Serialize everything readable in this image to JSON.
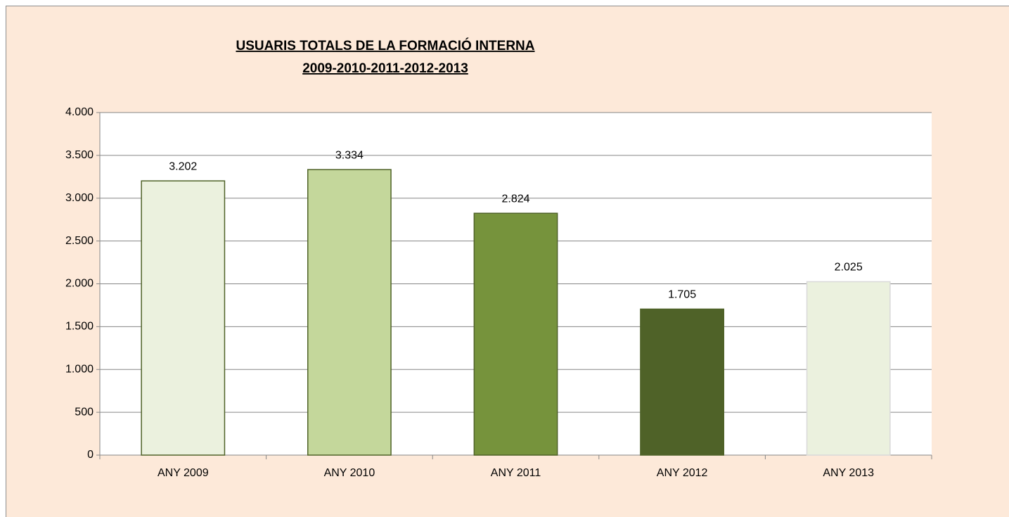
{
  "chart_data": {
    "type": "bar",
    "title": "USUARIS TOTALS DE LA FORMACIÓ INTERNA",
    "subtitle": "2009-2010-2011-2012-2013",
    "categories": [
      "ANY 2009",
      "ANY 2010",
      "ANY 2011",
      "ANY 2012",
      "ANY 2013"
    ],
    "values": [
      3202,
      3334,
      2824,
      1705,
      2025
    ],
    "value_labels": [
      "3.202",
      "3.334",
      "2.824",
      "1.705",
      "2.025"
    ],
    "colors": [
      "#ebf1de",
      "#c4d79b",
      "#76933c",
      "#4f6228",
      "#ebf1de"
    ],
    "ylim": [
      0,
      4000
    ],
    "yticks": [
      0,
      500,
      {
        "value": 1000,
        "label": "1.000"
      },
      {
        "value": 1500,
        "label": "1.500"
      },
      {
        "value": 2000,
        "label": "2.000"
      },
      {
        "value": 2500,
        "label": "2.500"
      },
      {
        "value": 3000,
        "label": "3.000"
      },
      {
        "value": 3500,
        "label": "3.500"
      },
      {
        "value": 4000,
        "label": "4.000"
      }
    ],
    "grid": true
  }
}
